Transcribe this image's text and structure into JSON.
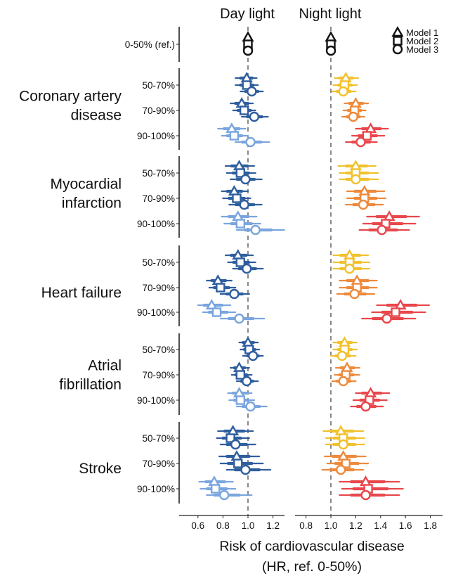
{
  "chart_data": {
    "type": "forest",
    "panels": [
      {
        "key": "day",
        "title": "Day light",
        "xlim": [
          0.45,
          1.3
        ],
        "ticks": [
          0.6,
          0.8,
          1.0,
          1.2
        ],
        "tick_labels": [
          "0.6",
          "0.8",
          "1.0",
          "1.2"
        ],
        "reference_line": 1.0
      },
      {
        "key": "night",
        "title": "Night light",
        "xlim": [
          0.72,
          1.92
        ],
        "ticks": [
          0.8,
          1.0,
          1.2,
          1.4,
          1.6,
          1.8
        ],
        "tick_labels": [
          "0.8",
          "1.0",
          "1.2",
          "1.4",
          "1.6",
          "1.8"
        ],
        "reference_line": 1.0
      }
    ],
    "xlabel": "Risk of cardiovascular disease",
    "xlabel_line2": "(HR, ref. 0-50%)",
    "legend": {
      "position": "top-right",
      "entries": [
        {
          "model": "Model 1",
          "marker": "triangle"
        },
        {
          "model": "Model 2",
          "marker": "square"
        },
        {
          "model": "Model 3",
          "marker": "circle"
        }
      ]
    },
    "colors": {
      "day": {
        "50-70%": "#2f5e9e",
        "70-90%": "#2f5e9e",
        "90-100%": "#7aa5de"
      },
      "night": {
        "50-70%": "#f2c12e",
        "70-90%": "#ee8a3c",
        "90-100%": "#e8474c"
      },
      "reference": "#111111"
    },
    "reference_row": {
      "label": "0-50% (ref.)",
      "value": 1.0
    },
    "groups": [
      {
        "name_lines": [
          "Coronary artery",
          "disease"
        ],
        "rows": [
          {
            "category": "50-70%",
            "day": [
              {
                "hr": 0.99,
                "lo": 0.9,
                "hi": 1.07
              },
              {
                "hr": 0.99,
                "lo": 0.9,
                "hi": 1.08
              },
              {
                "hr": 1.03,
                "lo": 0.94,
                "hi": 1.12
              }
            ],
            "night": [
              {
                "hr": 1.12,
                "lo": 1.03,
                "hi": 1.22
              },
              {
                "hr": 1.11,
                "lo": 1.02,
                "hi": 1.21
              },
              {
                "hr": 1.1,
                "lo": 1.01,
                "hi": 1.2
              }
            ]
          },
          {
            "category": "70-90%",
            "day": [
              {
                "hr": 0.95,
                "lo": 0.86,
                "hi": 1.04
              },
              {
                "hr": 0.97,
                "lo": 0.88,
                "hi": 1.06
              },
              {
                "hr": 1.05,
                "lo": 0.95,
                "hi": 1.16
              }
            ],
            "night": [
              {
                "hr": 1.2,
                "lo": 1.11,
                "hi": 1.3
              },
              {
                "hr": 1.19,
                "lo": 1.1,
                "hi": 1.28
              },
              {
                "hr": 1.18,
                "lo": 1.09,
                "hi": 1.27
              }
            ]
          },
          {
            "category": "90-100%",
            "day": [
              {
                "hr": 0.87,
                "lo": 0.76,
                "hi": 0.98
              },
              {
                "hr": 0.89,
                "lo": 0.79,
                "hi": 1.0
              },
              {
                "hr": 1.02,
                "lo": 0.9,
                "hi": 1.17
              }
            ],
            "night": [
              {
                "hr": 1.32,
                "lo": 1.2,
                "hi": 1.46
              },
              {
                "hr": 1.29,
                "lo": 1.17,
                "hi": 1.43
              },
              {
                "hr": 1.24,
                "lo": 1.12,
                "hi": 1.37
              }
            ]
          }
        ]
      },
      {
        "name_lines": [
          "Myocardial",
          "infarction"
        ],
        "rows": [
          {
            "category": "50-70%",
            "day": [
              {
                "hr": 0.93,
                "lo": 0.82,
                "hi": 1.05
              },
              {
                "hr": 0.94,
                "lo": 0.83,
                "hi": 1.06
              },
              {
                "hr": 0.98,
                "lo": 0.86,
                "hi": 1.11
              }
            ],
            "night": [
              {
                "hr": 1.2,
                "lo": 1.06,
                "hi": 1.36
              },
              {
                "hr": 1.2,
                "lo": 1.07,
                "hi": 1.38
              },
              {
                "hr": 1.2,
                "lo": 1.07,
                "hi": 1.38
              }
            ]
          },
          {
            "category": "70-90%",
            "day": [
              {
                "hr": 0.89,
                "lo": 0.79,
                "hi": 1.0
              },
              {
                "hr": 0.91,
                "lo": 0.8,
                "hi": 1.02
              },
              {
                "hr": 0.97,
                "lo": 0.85,
                "hi": 1.11
              }
            ],
            "night": [
              {
                "hr": 1.27,
                "lo": 1.13,
                "hi": 1.43
              },
              {
                "hr": 1.27,
                "lo": 1.13,
                "hi": 1.44
              },
              {
                "hr": 1.26,
                "lo": 1.12,
                "hi": 1.42
              }
            ]
          },
          {
            "category": "90-100%",
            "day": [
              {
                "hr": 0.92,
                "lo": 0.79,
                "hi": 1.07
              },
              {
                "hr": 0.94,
                "lo": 0.81,
                "hi": 1.1
              },
              {
                "hr": 1.06,
                "lo": 0.91,
                "hi": 1.29
              }
            ],
            "night": [
              {
                "hr": 1.47,
                "lo": 1.29,
                "hi": 1.71
              },
              {
                "hr": 1.44,
                "lo": 1.26,
                "hi": 1.68
              },
              {
                "hr": 1.41,
                "lo": 1.23,
                "hi": 1.63
              }
            ]
          }
        ]
      },
      {
        "name_lines": [
          "Heart failure"
        ],
        "rows": [
          {
            "category": "50-70%",
            "day": [
              {
                "hr": 0.92,
                "lo": 0.82,
                "hi": 1.04
              },
              {
                "hr": 0.94,
                "lo": 0.84,
                "hi": 1.06
              },
              {
                "hr": 0.99,
                "lo": 0.88,
                "hi": 1.12
              }
            ],
            "night": [
              {
                "hr": 1.15,
                "lo": 1.02,
                "hi": 1.3
              },
              {
                "hr": 1.15,
                "lo": 1.02,
                "hi": 1.31
              },
              {
                "hr": 1.15,
                "lo": 1.02,
                "hi": 1.31
              }
            ]
          },
          {
            "category": "70-90%",
            "day": [
              {
                "hr": 0.76,
                "lo": 0.67,
                "hi": 0.87
              },
              {
                "hr": 0.78,
                "lo": 0.69,
                "hi": 0.9
              },
              {
                "hr": 0.89,
                "lo": 0.78,
                "hi": 1.01
              }
            ],
            "night": [
              {
                "hr": 1.21,
                "lo": 1.07,
                "hi": 1.37
              },
              {
                "hr": 1.21,
                "lo": 1.07,
                "hi": 1.37
              },
              {
                "hr": 1.19,
                "lo": 1.05,
                "hi": 1.35
              }
            ]
          },
          {
            "category": "90-100%",
            "day": [
              {
                "hr": 0.71,
                "lo": 0.6,
                "hi": 0.86
              },
              {
                "hr": 0.75,
                "lo": 0.64,
                "hi": 0.9
              },
              {
                "hr": 0.93,
                "lo": 0.78,
                "hi": 1.13
              }
            ],
            "night": [
              {
                "hr": 1.56,
                "lo": 1.37,
                "hi": 1.79
              },
              {
                "hr": 1.52,
                "lo": 1.33,
                "hi": 1.76
              },
              {
                "hr": 1.45,
                "lo": 1.25,
                "hi": 1.68
              }
            ]
          }
        ]
      },
      {
        "name_lines": [
          "Atrial",
          "fibrillation"
        ],
        "rows": [
          {
            "category": "50-70%",
            "day": [
              {
                "hr": 1.0,
                "lo": 0.93,
                "hi": 1.08
              },
              {
                "hr": 1.01,
                "lo": 0.94,
                "hi": 1.09
              },
              {
                "hr": 1.04,
                "lo": 0.96,
                "hi": 1.12
              }
            ],
            "night": [
              {
                "hr": 1.11,
                "lo": 1.02,
                "hi": 1.21
              },
              {
                "hr": 1.11,
                "lo": 1.02,
                "hi": 1.21
              },
              {
                "hr": 1.09,
                "lo": 1.0,
                "hi": 1.2
              }
            ]
          },
          {
            "category": "70-90%",
            "day": [
              {
                "hr": 0.93,
                "lo": 0.86,
                "hi": 1.01
              },
              {
                "hr": 0.94,
                "lo": 0.87,
                "hi": 1.03
              },
              {
                "hr": 0.99,
                "lo": 0.91,
                "hi": 1.08
              }
            ],
            "night": [
              {
                "hr": 1.13,
                "lo": 1.04,
                "hi": 1.23
              },
              {
                "hr": 1.12,
                "lo": 1.03,
                "hi": 1.23
              },
              {
                "hr": 1.1,
                "lo": 1.01,
                "hi": 1.2
              }
            ]
          },
          {
            "category": "90-100%",
            "day": [
              {
                "hr": 0.93,
                "lo": 0.84,
                "hi": 1.03
              },
              {
                "hr": 0.94,
                "lo": 0.85,
                "hi": 1.05
              },
              {
                "hr": 1.02,
                "lo": 0.91,
                "hi": 1.15
              }
            ],
            "night": [
              {
                "hr": 1.32,
                "lo": 1.2,
                "hi": 1.47
              },
              {
                "hr": 1.31,
                "lo": 1.18,
                "hi": 1.45
              },
              {
                "hr": 1.28,
                "lo": 1.16,
                "hi": 1.42
              }
            ]
          }
        ]
      },
      {
        "name_lines": [
          "Stroke"
        ],
        "rows": [
          {
            "category": "50-70%",
            "day": [
              {
                "hr": 0.88,
                "lo": 0.76,
                "hi": 1.04
              },
              {
                "hr": 0.86,
                "lo": 0.75,
                "hi": 1.01
              },
              {
                "hr": 0.9,
                "lo": 0.78,
                "hi": 1.06
              }
            ],
            "night": [
              {
                "hr": 1.08,
                "lo": 0.94,
                "hi": 1.26
              },
              {
                "hr": 1.1,
                "lo": 0.96,
                "hi": 1.27
              },
              {
                "hr": 1.1,
                "lo": 0.96,
                "hi": 1.27
              }
            ]
          },
          {
            "category": "70-90%",
            "day": [
              {
                "hr": 0.91,
                "lo": 0.77,
                "hi": 1.09
              },
              {
                "hr": 0.92,
                "lo": 0.78,
                "hi": 1.12
              },
              {
                "hr": 0.98,
                "lo": 0.83,
                "hi": 1.18
              }
            ],
            "night": [
              {
                "hr": 1.1,
                "lo": 0.95,
                "hi": 1.28
              },
              {
                "hr": 1.12,
                "lo": 0.97,
                "hi": 1.3
              },
              {
                "hr": 1.08,
                "lo": 0.93,
                "hi": 1.26
              }
            ]
          },
          {
            "category": "90-100%",
            "day": [
              {
                "hr": 0.73,
                "lo": 0.61,
                "hi": 0.88
              },
              {
                "hr": 0.74,
                "lo": 0.62,
                "hi": 0.9
              },
              {
                "hr": 0.81,
                "lo": 0.67,
                "hi": 1.03
              }
            ],
            "night": [
              {
                "hr": 1.28,
                "lo": 1.07,
                "hi": 1.55
              },
              {
                "hr": 1.3,
                "lo": 1.09,
                "hi": 1.58
              },
              {
                "hr": 1.28,
                "lo": 1.07,
                "hi": 1.55
              }
            ]
          }
        ]
      }
    ]
  }
}
